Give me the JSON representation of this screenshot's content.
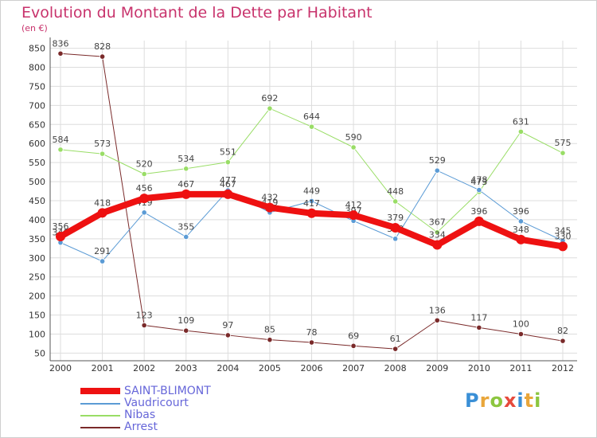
{
  "title": "Evolution du Montant de la Dette par Habitant",
  "unit": "(en €)",
  "logo_text": "Proxiti",
  "colors": {
    "title": "#c8336c",
    "legend_text": "#6666d9",
    "grid": "#dddddd",
    "axis": "#555555"
  },
  "chart_data": {
    "type": "line",
    "title": "Evolution du Montant de la Dette par Habitant",
    "ylabel": "(en €)",
    "x": [
      "2000",
      "2001",
      "2002",
      "2003",
      "2004",
      "2005",
      "2006",
      "2007",
      "2008",
      "2009",
      "2010",
      "2011",
      "2012"
    ],
    "yticks": [
      50,
      100,
      150,
      200,
      250,
      300,
      350,
      400,
      450,
      500,
      550,
      600,
      650,
      700,
      750,
      800,
      850
    ],
    "ylim": [
      30,
      870
    ],
    "grid": true,
    "legend_position": "bottom-left",
    "series": [
      {
        "name": "SAINT-BLIMONT",
        "color": "#ee1111",
        "width": 8,
        "values": [
          356,
          418,
          456,
          467,
          467,
          432,
          417,
          412,
          379,
          334,
          396,
          348,
          330
        ]
      },
      {
        "name": "Vaudricourt",
        "color": "#5b9bd5",
        "width": 1,
        "values": [
          340,
          291,
          419,
          355,
          477,
          419,
          449,
          397,
          350,
          529,
          478,
          396,
          345
        ]
      },
      {
        "name": "Nibas",
        "color": "#99dd66",
        "width": 1,
        "values": [
          584,
          573,
          520,
          534,
          551,
          692,
          644,
          590,
          448,
          367,
          473,
          631,
          575
        ]
      },
      {
        "name": "Arrest",
        "color": "#7a2a2a",
        "width": 1,
        "values": [
          836,
          828,
          123,
          109,
          97,
          85,
          78,
          69,
          61,
          136,
          117,
          100,
          82
        ]
      }
    ]
  }
}
